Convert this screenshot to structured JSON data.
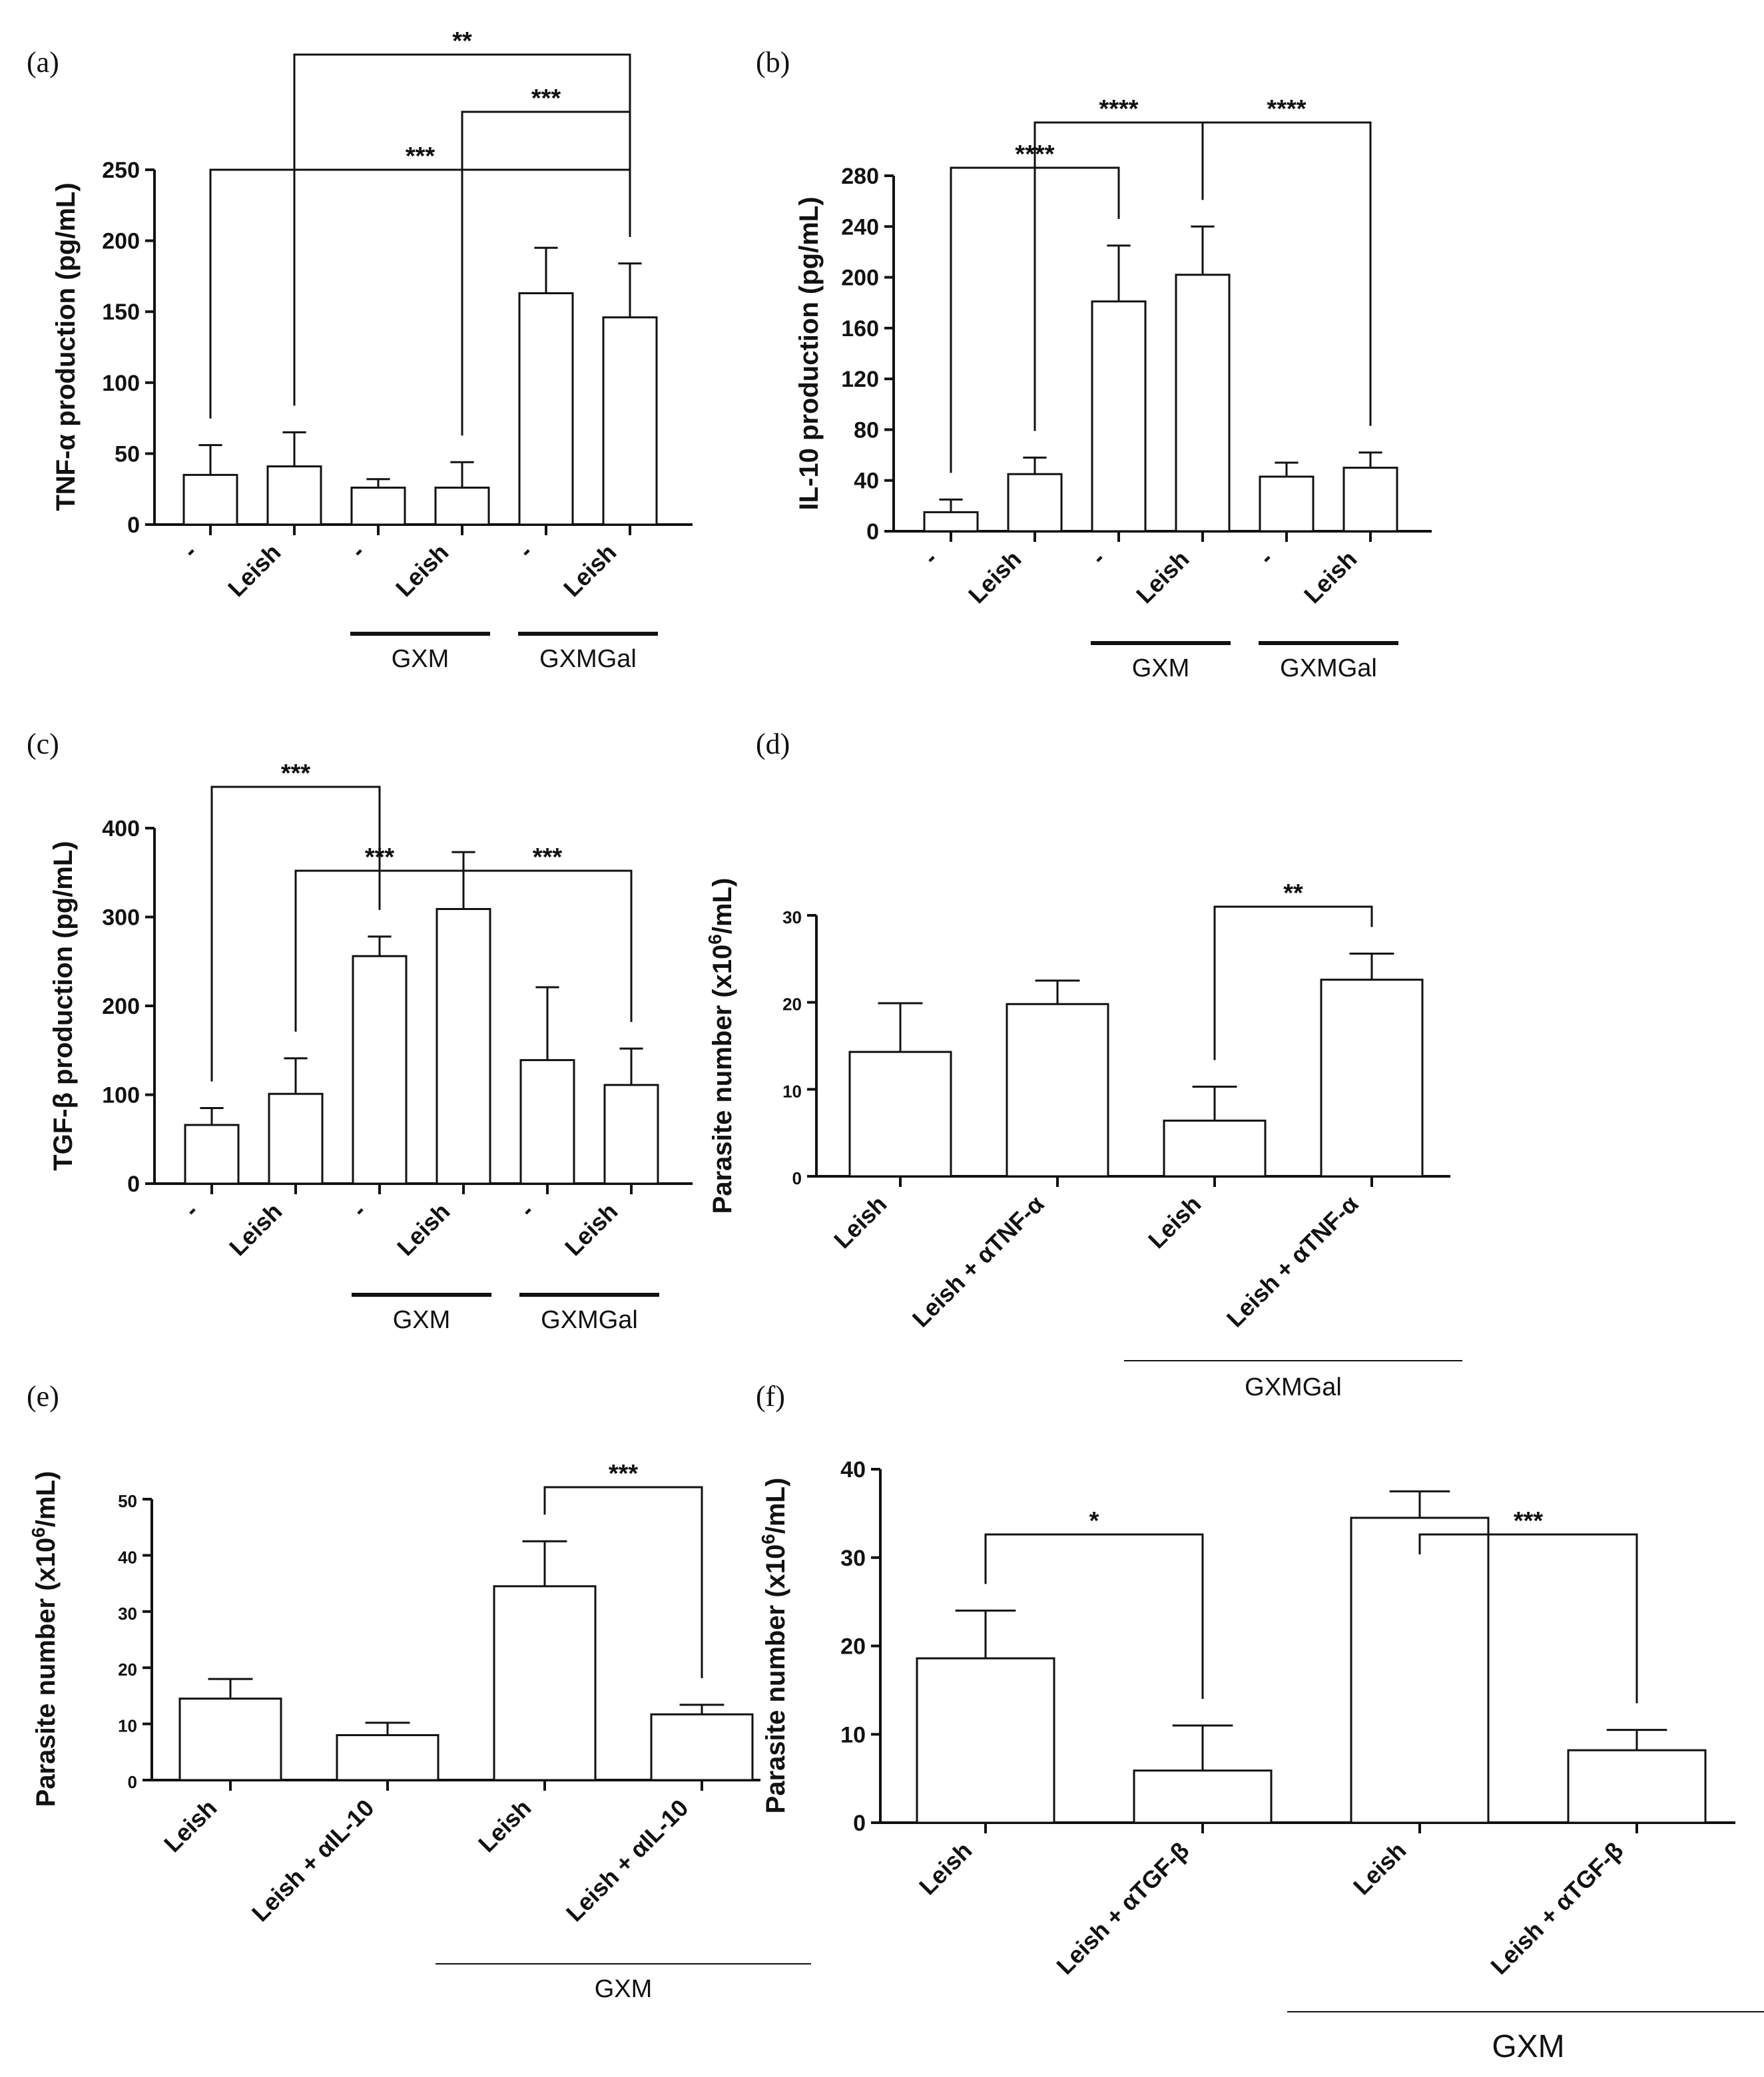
{
  "chart_data": [
    {
      "panel": "(a)",
      "type": "bar",
      "ylabel": "TNF-α production (pg/mL)",
      "ylim": [
        0,
        250
      ],
      "yticks": [
        0,
        50,
        100,
        150,
        200,
        250
      ],
      "categories": [
        "-",
        "Leish",
        "-",
        "Leish",
        "-",
        "Leish"
      ],
      "values": [
        35,
        41,
        26,
        26,
        163,
        146
      ],
      "errors": [
        21,
        24,
        6,
        18,
        32,
        38
      ],
      "groups": [
        {
          "label": "GXM",
          "from": 2,
          "to": 3
        },
        {
          "label": "GXMGal",
          "from": 4,
          "to": 5
        }
      ],
      "significance": [
        {
          "from": 1,
          "to": 5,
          "label": "**",
          "level": 3
        },
        {
          "from": 3,
          "to": 5,
          "label": "***",
          "level": 2
        },
        {
          "from": 0,
          "to": 5,
          "label": "***",
          "level": 1
        }
      ]
    },
    {
      "panel": "(b)",
      "type": "bar",
      "ylabel": "IL-10 production (pg/mL)",
      "ylim": [
        0,
        280
      ],
      "yticks": [
        0,
        40,
        80,
        120,
        160,
        200,
        240,
        280
      ],
      "categories": [
        "-",
        "Leish",
        "-",
        "Leish",
        "-",
        "Leish"
      ],
      "values": [
        15,
        45,
        181,
        202,
        43,
        50
      ],
      "errors": [
        10,
        13,
        44,
        38,
        11,
        12
      ],
      "groups": [
        {
          "label": "GXM",
          "from": 2,
          "to": 3
        },
        {
          "label": "GXMGal",
          "from": 4,
          "to": 5
        }
      ],
      "significance": [
        {
          "from": 1,
          "to": 3,
          "label": "****",
          "level": 2
        },
        {
          "from": 3,
          "to": 5,
          "label": "****",
          "level": 2
        },
        {
          "from": 0,
          "to": 2,
          "label": "****",
          "level": 1
        }
      ]
    },
    {
      "panel": "(c)",
      "type": "bar",
      "ylabel": "TGF-β production (pg/mL)",
      "ylim": [
        0,
        400
      ],
      "yticks": [
        0,
        100,
        200,
        300,
        400
      ],
      "categories": [
        "-",
        "Leish",
        "-",
        "Leish",
        "-",
        "Leish"
      ],
      "values": [
        66,
        101,
        256,
        309,
        139,
        111
      ],
      "errors": [
        19,
        40,
        22,
        64,
        82,
        41
      ],
      "groups": [
        {
          "label": "GXM",
          "from": 2,
          "to": 3
        },
        {
          "label": "GXMGal",
          "from": 4,
          "to": 5
        }
      ],
      "significance": [
        {
          "from": 1,
          "to": 3,
          "label": "***",
          "level": 2
        },
        {
          "from": 3,
          "to": 5,
          "label": "***",
          "level": 2
        },
        {
          "from": 0,
          "to": 2,
          "label": "***",
          "level": 1
        }
      ]
    },
    {
      "panel": "(d)",
      "type": "bar",
      "ylabel": "Parasite number (x10",
      "ylabel_sup": "6",
      "ylabel_tail": "/mL)",
      "ylim": [
        0,
        30
      ],
      "yticks": [
        0,
        10,
        20,
        30
      ],
      "categories": [
        "Leish",
        "Leish + αTNF-α",
        "Leish",
        "Leish + αTNF-α"
      ],
      "values": [
        14.3,
        19.8,
        6.4,
        22.6
      ],
      "errors": [
        5.6,
        2.7,
        3.9,
        3.0
      ],
      "groups": [
        {
          "label": "GXMGal",
          "from": 2,
          "to": 3
        }
      ],
      "significance": [
        {
          "from": 2,
          "to": 3,
          "label": "**",
          "level": 1
        }
      ]
    },
    {
      "panel": "(e)",
      "type": "bar",
      "ylabel": "Parasite number (x10",
      "ylabel_sup": "6",
      "ylabel_tail": "/mL)",
      "ylim": [
        0,
        50
      ],
      "yticks": [
        0,
        10,
        20,
        30,
        40,
        50
      ],
      "categories": [
        "Leish",
        "Leish + αIL-10",
        "Leish",
        "Leish + αIL-10"
      ],
      "values": [
        14.5,
        8.0,
        34.5,
        11.7
      ],
      "errors": [
        3.5,
        2.2,
        8.0,
        1.7
      ],
      "groups": [
        {
          "label": "GXM",
          "from": 2,
          "to": 3
        }
      ],
      "significance": [
        {
          "from": 2,
          "to": 3,
          "label": "***",
          "level": 1
        }
      ]
    },
    {
      "panel": "(f)",
      "type": "bar",
      "ylabel": "Parasite number (x10",
      "ylabel_sup": "6",
      "ylabel_tail": "/mL)",
      "ylim": [
        0,
        40
      ],
      "yticks": [
        0,
        10,
        20,
        30,
        40
      ],
      "categories": [
        "Leish",
        "Leish + αTGF-β",
        "Leish",
        "Leish + αTGF-β"
      ],
      "values": [
        18.6,
        5.9,
        34.5,
        8.2
      ],
      "errors": [
        5.4,
        5.1,
        3.0,
        2.3
      ],
      "groups": [
        {
          "label": "GXM",
          "from": 2,
          "to": 3
        }
      ],
      "significance": [
        {
          "from": 0,
          "to": 1,
          "label": "*",
          "level": 1
        },
        {
          "from": 2,
          "to": 3,
          "label": "***",
          "level": 1
        }
      ]
    }
  ]
}
